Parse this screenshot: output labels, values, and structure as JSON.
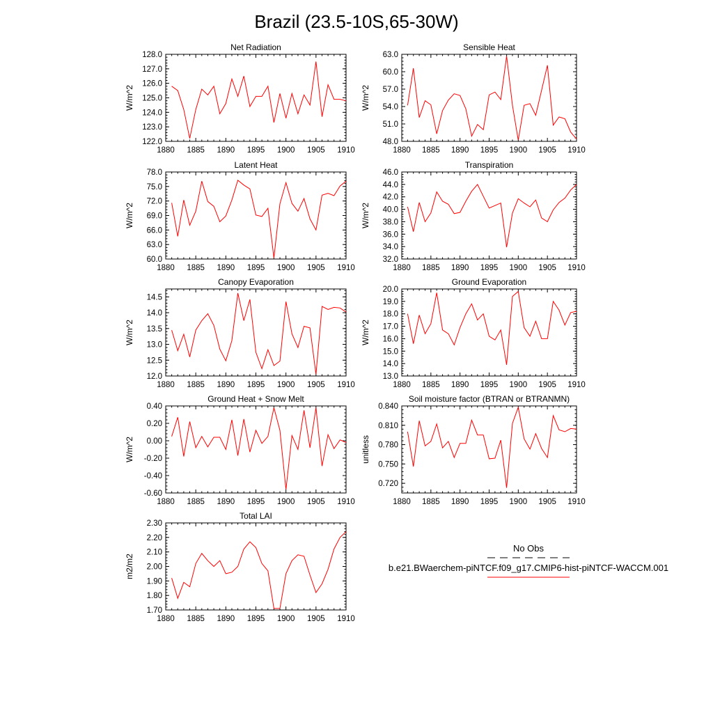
{
  "figure": {
    "title": "Brazil (23.5-10S,65-30W)"
  },
  "legend": {
    "obs_label": "No Obs",
    "model_label": "b.e21.BWaerchem-piNTCF.f09_g17.CMIP6-hist-piNTCF-WACCM.001",
    "obs_color": "#000000",
    "model_color": "#ff0000"
  },
  "chart_data": [
    {
      "type": "line",
      "title": "Net Radiation",
      "ylabel": "W/m^2",
      "xlim": [
        1880,
        1910
      ],
      "ylim": [
        122.0,
        128.0
      ],
      "xticks": [
        1880,
        1885,
        1890,
        1895,
        1900,
        1905,
        1910
      ],
      "yticks": [
        "122.0",
        "123.0",
        "124.0",
        "125.0",
        "126.0",
        "127.0",
        "128.0"
      ],
      "series": [
        {
          "color": "#ff0000",
          "x": [
            1881,
            1882,
            1883,
            1884,
            1885,
            1886,
            1887,
            1888,
            1889,
            1890,
            1891,
            1892,
            1893,
            1894,
            1895,
            1896,
            1897,
            1898,
            1899,
            1900,
            1901,
            1902,
            1903,
            1904,
            1905,
            1906,
            1907,
            1908,
            1909,
            1910
          ],
          "y": [
            125.8,
            125.5,
            124.2,
            122.2,
            124.2,
            125.6,
            125.2,
            125.8,
            123.9,
            124.6,
            126.3,
            125.1,
            126.5,
            124.4,
            125.1,
            125.1,
            125.8,
            123.3,
            125.3,
            123.6,
            125.3,
            123.9,
            125.2,
            124.5,
            127.5,
            123.7,
            125.9,
            124.9,
            124.9,
            124.8
          ]
        }
      ]
    },
    {
      "type": "line",
      "title": "Sensible Heat",
      "ylabel": "W/m^2",
      "xlim": [
        1880,
        1910
      ],
      "ylim": [
        48.0,
        63.0
      ],
      "xticks": [
        1880,
        1885,
        1890,
        1895,
        1900,
        1905,
        1910
      ],
      "yticks": [
        "48.0",
        "51.0",
        "54.0",
        "57.0",
        "60.0",
        "63.0"
      ],
      "series": [
        {
          "color": "#ff0000",
          "x": [
            1881,
            1882,
            1883,
            1884,
            1885,
            1886,
            1887,
            1888,
            1889,
            1890,
            1891,
            1892,
            1893,
            1894,
            1895,
            1896,
            1897,
            1898,
            1899,
            1900,
            1901,
            1902,
            1903,
            1904,
            1905,
            1906,
            1907,
            1908,
            1909,
            1910
          ],
          "y": [
            54.2,
            60.6,
            52.1,
            55.0,
            54.3,
            49.3,
            53.3,
            55.1,
            56.2,
            55.9,
            53.6,
            48.9,
            50.9,
            50.0,
            56.0,
            56.5,
            55.2,
            62.7,
            54.2,
            48.2,
            54.2,
            54.5,
            52.5,
            56.8,
            61.1,
            50.8,
            52.2,
            51.9,
            49.6,
            48.4
          ]
        }
      ]
    },
    {
      "type": "line",
      "title": "Latent Heat",
      "ylabel": "W/m^2",
      "xlim": [
        1880,
        1910
      ],
      "ylim": [
        60.0,
        78.0
      ],
      "xticks": [
        1880,
        1885,
        1890,
        1895,
        1900,
        1905,
        1910
      ],
      "yticks": [
        "60.0",
        "63.0",
        "66.0",
        "69.0",
        "72.0",
        "75.0",
        "78.0"
      ],
      "series": [
        {
          "color": "#ff0000",
          "x": [
            1881,
            1882,
            1883,
            1884,
            1885,
            1886,
            1887,
            1888,
            1889,
            1890,
            1891,
            1892,
            1893,
            1894,
            1895,
            1896,
            1897,
            1898,
            1899,
            1900,
            1901,
            1902,
            1903,
            1904,
            1905,
            1906,
            1907,
            1908,
            1909,
            1910
          ],
          "y": [
            71.6,
            64.7,
            72.2,
            67.0,
            69.9,
            76.1,
            71.9,
            70.9,
            67.7,
            68.9,
            72.2,
            76.3,
            75.3,
            74.5,
            69.1,
            68.8,
            70.5,
            60.2,
            71.4,
            75.8,
            71.5,
            69.9,
            72.5,
            68.3,
            66.0,
            73.2,
            73.6,
            73.1,
            75.1,
            76.1
          ]
        }
      ]
    },
    {
      "type": "line",
      "title": "Transpiration",
      "ylabel": "W/m^2",
      "xlim": [
        1880,
        1910
      ],
      "ylim": [
        32.0,
        46.0
      ],
      "xticks": [
        1880,
        1885,
        1890,
        1895,
        1900,
        1905,
        1910
      ],
      "yticks": [
        "32.0",
        "34.0",
        "36.0",
        "38.0",
        "40.0",
        "42.0",
        "44.0",
        "46.0"
      ],
      "series": [
        {
          "color": "#ff0000",
          "x": [
            1881,
            1882,
            1883,
            1884,
            1885,
            1886,
            1887,
            1888,
            1889,
            1890,
            1891,
            1892,
            1893,
            1894,
            1895,
            1896,
            1897,
            1898,
            1899,
            1900,
            1901,
            1902,
            1903,
            1904,
            1905,
            1906,
            1907,
            1908,
            1909,
            1910
          ],
          "y": [
            40.4,
            36.4,
            41.1,
            38.0,
            39.4,
            42.8,
            41.3,
            40.8,
            39.3,
            39.5,
            41.3,
            42.9,
            44.0,
            42.1,
            40.2,
            40.6,
            41.0,
            33.9,
            39.4,
            41.7,
            41.0,
            40.4,
            41.5,
            38.6,
            38.0,
            39.9,
            41.1,
            41.8,
            43.1,
            44.0
          ]
        }
      ]
    },
    {
      "type": "line",
      "title": "Canopy Evaporation",
      "ylabel": "W/m^2",
      "xlim": [
        1880,
        1910
      ],
      "ylim": [
        12.0,
        14.75
      ],
      "xticks": [
        1880,
        1885,
        1890,
        1895,
        1900,
        1905,
        1910
      ],
      "yticks": [
        "12.0",
        "12.5",
        "13.0",
        "13.5",
        "14.0",
        "14.5"
      ],
      "series": [
        {
          "color": "#ff0000",
          "x": [
            1881,
            1882,
            1883,
            1884,
            1885,
            1886,
            1887,
            1888,
            1889,
            1890,
            1891,
            1892,
            1893,
            1894,
            1895,
            1896,
            1897,
            1898,
            1899,
            1900,
            1901,
            1902,
            1903,
            1904,
            1905,
            1906,
            1907,
            1908,
            1909,
            1910
          ],
          "y": [
            13.45,
            12.8,
            13.32,
            12.6,
            13.45,
            13.75,
            13.97,
            13.6,
            12.85,
            12.48,
            13.12,
            14.62,
            13.75,
            14.42,
            12.75,
            12.23,
            12.83,
            12.33,
            12.47,
            14.35,
            13.33,
            12.9,
            13.57,
            13.52,
            12.05,
            14.2,
            14.1,
            14.17,
            14.15,
            14.02
          ]
        }
      ]
    },
    {
      "type": "line",
      "title": "Ground Evaporation",
      "ylabel": "W/m^2",
      "xlim": [
        1880,
        1910
      ],
      "ylim": [
        13.0,
        20.0
      ],
      "xticks": [
        1880,
        1885,
        1890,
        1895,
        1900,
        1905,
        1910
      ],
      "yticks": [
        "13.0",
        "14.0",
        "15.0",
        "16.0",
        "17.0",
        "18.0",
        "19.0",
        "20.0"
      ],
      "series": [
        {
          "color": "#ff0000",
          "x": [
            1881,
            1882,
            1883,
            1884,
            1885,
            1886,
            1887,
            1888,
            1889,
            1890,
            1891,
            1892,
            1893,
            1894,
            1895,
            1896,
            1897,
            1898,
            1899,
            1900,
            1901,
            1902,
            1903,
            1904,
            1905,
            1906,
            1907,
            1908,
            1909,
            1910
          ],
          "y": [
            18.0,
            15.6,
            17.9,
            16.4,
            17.2,
            19.7,
            16.7,
            16.4,
            15.5,
            16.9,
            18.0,
            18.8,
            17.5,
            18.0,
            16.2,
            15.9,
            16.7,
            13.9,
            19.4,
            19.8,
            16.9,
            16.2,
            17.4,
            16.0,
            16.0,
            19.0,
            18.3,
            17.1,
            18.1,
            18.2
          ]
        }
      ]
    },
    {
      "type": "line",
      "title": "Ground Heat + Snow Melt",
      "ylabel": "W/m^2",
      "xlim": [
        1880,
        1910
      ],
      "ylim": [
        -0.6,
        0.4
      ],
      "xticks": [
        1880,
        1885,
        1890,
        1895,
        1900,
        1905,
        1910
      ],
      "yticks": [
        "-0.60",
        "-0.40",
        "-0.20",
        "0.00",
        "0.20",
        "0.40"
      ],
      "series": [
        {
          "color": "#ff0000",
          "x": [
            1881,
            1882,
            1883,
            1884,
            1885,
            1886,
            1887,
            1888,
            1889,
            1890,
            1891,
            1892,
            1893,
            1894,
            1895,
            1896,
            1897,
            1898,
            1899,
            1900,
            1901,
            1902,
            1903,
            1904,
            1905,
            1906,
            1907,
            1908,
            1909,
            1910
          ],
          "y": [
            0.05,
            0.27,
            -0.18,
            0.22,
            -0.08,
            0.05,
            -0.07,
            0.04,
            0.04,
            -0.1,
            0.24,
            -0.17,
            0.25,
            -0.13,
            0.12,
            -0.03,
            0.05,
            0.38,
            0.12,
            -0.56,
            0.06,
            -0.1,
            0.35,
            -0.08,
            0.38,
            -0.29,
            0.07,
            -0.09,
            0.01,
            -0.02
          ]
        }
      ]
    },
    {
      "type": "line",
      "title": "Soil moisture factor (BTRAN or BTRANMN)",
      "ylabel": "unitless",
      "xlim": [
        1880,
        1910
      ],
      "ylim": [
        0.705,
        0.84
      ],
      "xticks": [
        1880,
        1885,
        1890,
        1895,
        1900,
        1905,
        1910
      ],
      "yticks": [
        "0.720",
        "0.750",
        "0.780",
        "0.810",
        "0.840"
      ],
      "series": [
        {
          "color": "#ff0000",
          "x": [
            1881,
            1882,
            1883,
            1884,
            1885,
            1886,
            1887,
            1888,
            1889,
            1890,
            1891,
            1892,
            1893,
            1894,
            1895,
            1896,
            1897,
            1898,
            1899,
            1900,
            1901,
            1902,
            1903,
            1904,
            1905,
            1906,
            1907,
            1908,
            1909,
            1910
          ],
          "y": [
            0.8,
            0.746,
            0.817,
            0.778,
            0.785,
            0.812,
            0.775,
            0.785,
            0.76,
            0.782,
            0.782,
            0.818,
            0.795,
            0.795,
            0.758,
            0.759,
            0.787,
            0.713,
            0.813,
            0.838,
            0.789,
            0.773,
            0.797,
            0.774,
            0.76,
            0.825,
            0.803,
            0.8,
            0.805,
            0.804
          ]
        }
      ]
    },
    {
      "type": "line",
      "title": "Total LAI",
      "ylabel": "m2/m2",
      "xlim": [
        1880,
        1910
      ],
      "ylim": [
        1.7,
        2.3
      ],
      "xticks": [
        1880,
        1885,
        1890,
        1895,
        1900,
        1905,
        1910
      ],
      "yticks": [
        "1.70",
        "1.80",
        "1.90",
        "2.00",
        "2.10",
        "2.20",
        "2.30"
      ],
      "series": [
        {
          "color": "#ff0000",
          "x": [
            1881,
            1882,
            1883,
            1884,
            1885,
            1886,
            1887,
            1888,
            1889,
            1890,
            1891,
            1892,
            1893,
            1894,
            1895,
            1896,
            1897,
            1898,
            1899,
            1900,
            1901,
            1902,
            1903,
            1904,
            1905,
            1906,
            1907,
            1908,
            1909,
            1910
          ],
          "y": [
            1.92,
            1.78,
            1.89,
            1.86,
            2.02,
            2.09,
            2.04,
            2.0,
            2.04,
            1.95,
            1.96,
            2.0,
            2.12,
            2.17,
            2.13,
            2.02,
            1.97,
            1.71,
            1.71,
            1.95,
            2.04,
            2.08,
            2.07,
            1.94,
            1.82,
            1.88,
            1.98,
            2.12,
            2.2,
            2.24
          ]
        }
      ]
    }
  ]
}
